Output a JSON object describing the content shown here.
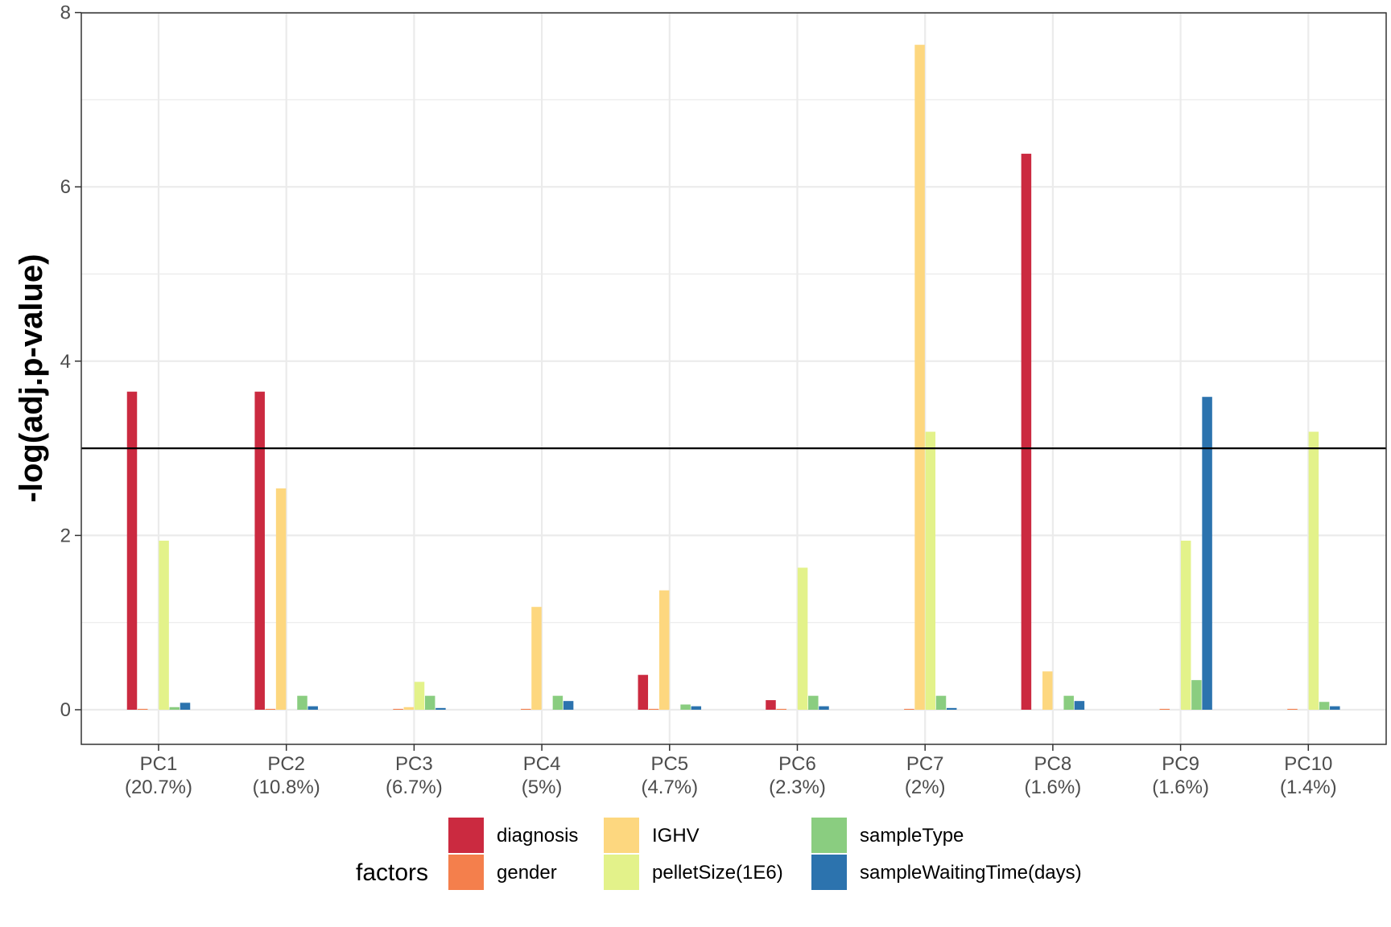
{
  "chart_data": {
    "type": "bar",
    "title": "",
    "xlabel": "",
    "ylabel": "-log(adj.p-value)",
    "ylim": [
      0,
      8
    ],
    "yticks": [
      "0",
      "2",
      "4",
      "6",
      "8"
    ],
    "grid": true,
    "threshold": 3,
    "categories": [
      [
        "PC1",
        "(20.7%)"
      ],
      [
        "PC2",
        "(10.8%)"
      ],
      [
        "PC3",
        "(6.7%)"
      ],
      [
        "PC4",
        "(5%)"
      ],
      [
        "PC5",
        "(4.7%)"
      ],
      [
        "PC6",
        "(2.3%)"
      ],
      [
        "PC7",
        "(2%)"
      ],
      [
        "PC8",
        "(1.6%)"
      ],
      [
        "PC9",
        "(1.6%)"
      ],
      [
        "PC10",
        "(1.4%)"
      ]
    ],
    "series": [
      {
        "name": "diagnosis",
        "color": "#cb2a40",
        "values": [
          3.65,
          3.65,
          0.0,
          0.0,
          0.4,
          0.11,
          0.0,
          6.38,
          0.0,
          0.0
        ]
      },
      {
        "name": "gender",
        "color": "#f47f4c",
        "values": [
          0.01,
          0.01,
          0.01,
          0.01,
          0.01,
          0.01,
          0.01,
          0.0,
          0.01,
          0.01
        ]
      },
      {
        "name": "IGHV",
        "color": "#fdd77f",
        "values": [
          0.0,
          2.54,
          0.03,
          1.18,
          1.37,
          0.0,
          7.63,
          0.44,
          0.0,
          0.0
        ]
      },
      {
        "name": "pelletSize(1E6)",
        "color": "#e3f28a",
        "values": [
          1.94,
          0.0,
          0.32,
          0.0,
          0.0,
          1.63,
          3.19,
          0.0,
          1.94,
          3.19
        ]
      },
      {
        "name": "sampleType",
        "color": "#8acd80",
        "values": [
          0.03,
          0.16,
          0.16,
          0.16,
          0.06,
          0.16,
          0.16,
          0.16,
          0.34,
          0.09
        ]
      },
      {
        "name": "sampleWaitingTime(days)",
        "color": "#2c73ae",
        "values": [
          0.08,
          0.04,
          0.02,
          0.1,
          0.04,
          0.04,
          0.02,
          0.1,
          3.59,
          0.04
        ]
      }
    ],
    "legend": {
      "title": "factors",
      "position": "bottom"
    }
  }
}
